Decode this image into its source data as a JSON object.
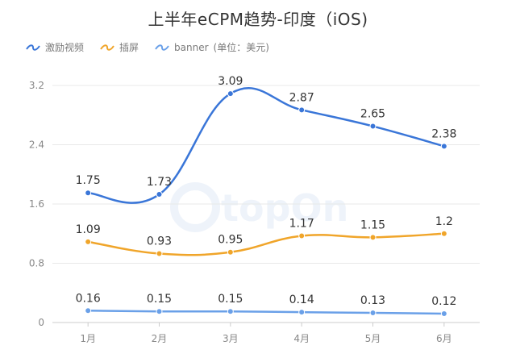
{
  "chart_data": {
    "type": "line",
    "title": "上半年eCPM趋势-印度（iOS)",
    "categories": [
      "1月",
      "2月",
      "3月",
      "4月",
      "5月",
      "6月"
    ],
    "ylim": [
      0,
      3.2
    ],
    "yticks": [
      "0",
      "0.8",
      "1.6",
      "2.4",
      "3.2"
    ],
    "ytick_values": [
      0,
      0.8,
      1.6,
      2.4,
      3.2
    ],
    "grid": true,
    "legend_position": "top-left",
    "unit_note": "(单位：美元)",
    "series": [
      {
        "name": "激励视频",
        "color": "#3a76d8",
        "values": [
          1.75,
          1.73,
          3.09,
          2.87,
          2.65,
          2.38
        ],
        "labels": [
          "1.75",
          "1.73",
          "3.09",
          "2.87",
          "2.65",
          "2.38"
        ]
      },
      {
        "name": "插屏",
        "color": "#f0a52a",
        "values": [
          1.09,
          0.93,
          0.95,
          1.17,
          1.15,
          1.2
        ],
        "labels": [
          "1.09",
          "0.93",
          "0.95",
          "1.17",
          "1.15",
          "1.2"
        ]
      },
      {
        "name": "banner",
        "color": "#6aa0e8",
        "values": [
          0.16,
          0.15,
          0.15,
          0.14,
          0.13,
          0.12
        ],
        "labels": [
          "0.16",
          "0.15",
          "0.15",
          "0.14",
          "0.13",
          "0.12"
        ]
      }
    ],
    "watermark": "topOn"
  }
}
